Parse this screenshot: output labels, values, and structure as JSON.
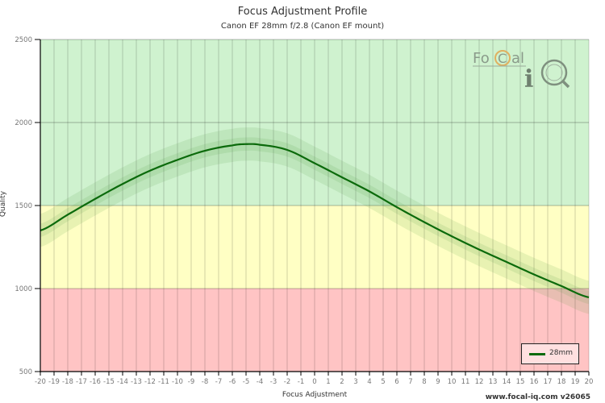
{
  "header": {
    "title": "Focus Adjustment Profile",
    "subtitle": "Canon EF 28mm f/2.8 (Canon EF mount)"
  },
  "footer": {
    "credit": "www.focal-iq.com  v26065"
  },
  "logo": {
    "text_a": "Fo",
    "text_b": "C",
    "text_c": "al",
    "text_d": "i"
  },
  "legend": {
    "series_label": "28mm",
    "series_color": "#0b6a0b"
  },
  "colors": {
    "zone_good": "#cff2cf",
    "zone_ok": "#ffffc4",
    "zone_poor": "#ffc4c4",
    "line": "#0b6a0b",
    "band": "#4a9a3a"
  },
  "chart_data": {
    "type": "line",
    "title": "Focus Adjustment Profile",
    "subtitle": "Canon EF 28mm f/2.8 (Canon EF mount)",
    "xlabel": "Focus Adjustment",
    "ylabel": "Quality",
    "xlim": [
      -20,
      20
    ],
    "ylim": [
      500,
      2500
    ],
    "x_ticks": [
      -20,
      -19,
      -18,
      -17,
      -16,
      -15,
      -14,
      -13,
      -12,
      -11,
      -10,
      -9,
      -8,
      -7,
      -6,
      -5,
      -4,
      -3,
      -2,
      -1,
      0,
      1,
      2,
      3,
      4,
      5,
      6,
      7,
      8,
      9,
      10,
      11,
      12,
      13,
      14,
      15,
      16,
      17,
      18,
      19,
      20
    ],
    "y_ticks": [
      500,
      1000,
      1500,
      2000,
      2500
    ],
    "grid": true,
    "legend_position": "bottom-right",
    "background_zones": [
      {
        "name": "good",
        "from": 1500,
        "to": 2500,
        "color": "#cff2cf"
      },
      {
        "name": "ok",
        "from": 1000,
        "to": 1500,
        "color": "#ffffc4"
      },
      {
        "name": "poor",
        "from": 500,
        "to": 1000,
        "color": "#ffc4c4"
      }
    ],
    "series": [
      {
        "name": "28mm",
        "x": [
          -20,
          -18,
          -16,
          -14,
          -12,
          -10,
          -8,
          -6,
          -5,
          -4,
          -2,
          0,
          2,
          4,
          6,
          8,
          10,
          12,
          14,
          16,
          18,
          20
        ],
        "values": [
          1350,
          1445,
          1540,
          1630,
          1710,
          1775,
          1830,
          1862,
          1870,
          1866,
          1835,
          1755,
          1670,
          1585,
          1490,
          1400,
          1315,
          1235,
          1160,
          1085,
          1015,
          947
        ],
        "band_inner": 40,
        "band_outer": 100
      }
    ]
  }
}
